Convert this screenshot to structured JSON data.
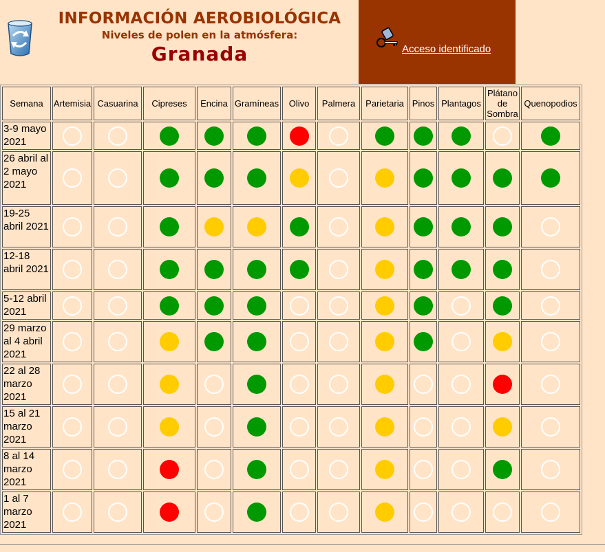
{
  "header": {
    "title": "INFORMACIÓN AEROBIOLÓGICA",
    "subtitle": "Niveles de polen en la atmósfera:",
    "city": "Granada",
    "logo_icon": "recycle-logo-icon",
    "access": {
      "icon": "keys-icon",
      "label": "Acceso identificado"
    }
  },
  "colors": {
    "page_bg": "#ffe4c8",
    "title": "#993300",
    "city": "#990000",
    "access_panel_bg": "#993300",
    "level_none": "#ffffff",
    "level_low": "#009900",
    "level_moderate": "#ffcc00",
    "level_high": "#ff0000"
  },
  "table": {
    "week_header": "Semana",
    "columns": [
      "Artemisia",
      "Casuarina",
      "Cipreses",
      "Encina",
      "Gramíneas",
      "Olivo",
      "Palmera",
      "Parietaria",
      "Pinos",
      "Plantagos",
      "Plátano de Sombra",
      "Quenopodios"
    ],
    "rows": [
      {
        "week": "3-9 mayo 2021",
        "levels": [
          "none",
          "none",
          "low",
          "low",
          "low",
          "high",
          "none",
          "low",
          "low",
          "low",
          "none",
          "low"
        ]
      },
      {
        "week": "26 abril al 2 mayo 2021",
        "levels": [
          "none",
          "none",
          "low",
          "low",
          "low",
          "moderate",
          "none",
          "moderate",
          "low",
          "low",
          "low",
          "low"
        ]
      },
      {
        "week": "19-25 abril 2021",
        "levels": [
          "none",
          "none",
          "low",
          "moderate",
          "moderate",
          "low",
          "none",
          "moderate",
          "low",
          "low",
          "low",
          "none"
        ]
      },
      {
        "week": "12-18 abril 2021",
        "levels": [
          "none",
          "none",
          "low",
          "low",
          "low",
          "low",
          "none",
          "moderate",
          "low",
          "low",
          "low",
          "none"
        ]
      },
      {
        "week": "5-12 abril 2021",
        "levels": [
          "none",
          "none",
          "low",
          "low",
          "low",
          "none",
          "none",
          "moderate",
          "low",
          "none",
          "low",
          "none"
        ]
      },
      {
        "week": "29 marzo al 4 abril 2021",
        "levels": [
          "none",
          "none",
          "moderate",
          "low",
          "low",
          "none",
          "none",
          "moderate",
          "low",
          "none",
          "moderate",
          "none"
        ]
      },
      {
        "week": "22 al 28 marzo 2021",
        "levels": [
          "none",
          "none",
          "moderate",
          "none",
          "low",
          "none",
          "none",
          "moderate",
          "none",
          "none",
          "high",
          "none"
        ]
      },
      {
        "week": "15 al 21 marzo 2021",
        "levels": [
          "none",
          "none",
          "moderate",
          "none",
          "low",
          "none",
          "none",
          "moderate",
          "none",
          "none",
          "moderate",
          "none"
        ]
      },
      {
        "week": "8 al 14 marzo 2021",
        "levels": [
          "none",
          "none",
          "high",
          "none",
          "low",
          "none",
          "none",
          "moderate",
          "none",
          "none",
          "low",
          "none"
        ]
      },
      {
        "week": "1 al 7 marzo 2021",
        "levels": [
          "none",
          "none",
          "high",
          "none",
          "low",
          "none",
          "none",
          "moderate",
          "none",
          "none",
          "none",
          "none"
        ]
      }
    ]
  }
}
